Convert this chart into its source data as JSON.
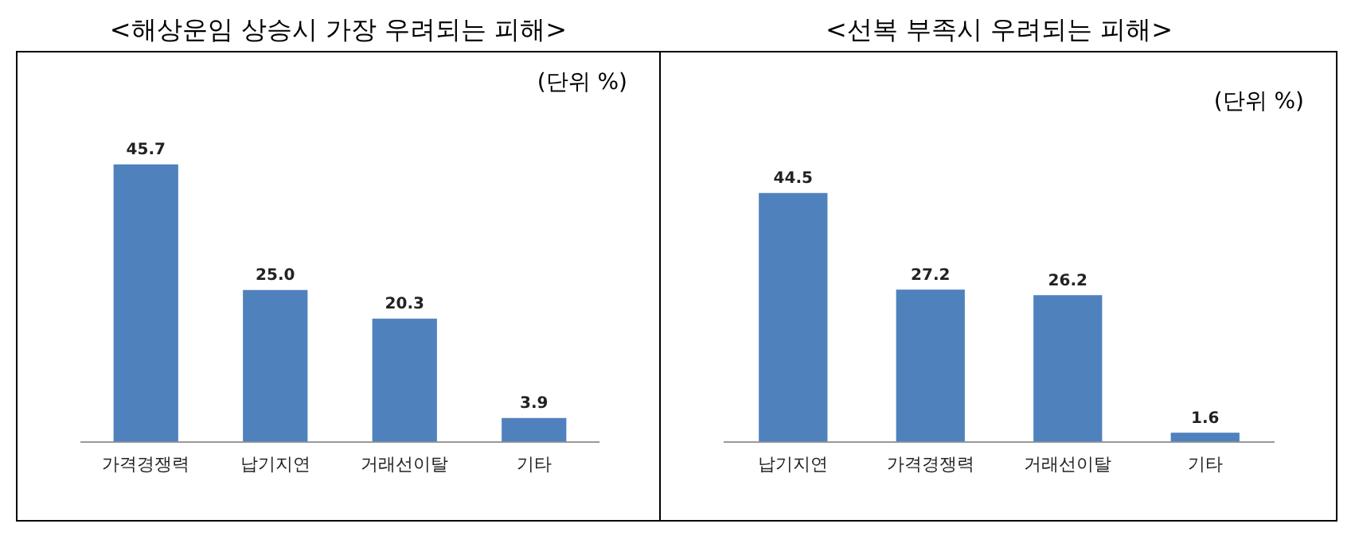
{
  "chart_data": [
    {
      "type": "bar",
      "title": "<해상운임 상승시 가장 우려되는 피해>",
      "annotations": [
        "(단위 %)"
      ],
      "categories": [
        "가격경쟁력",
        "납기지연",
        "거래선이탈",
        "기타"
      ],
      "values": [
        45.7,
        25.0,
        20.3,
        3.9
      ],
      "color": "#4f81bd",
      "data_labels": true,
      "value_labels": [
        "45.7",
        "25.0",
        "20.3",
        "3.9"
      ],
      "grid": false,
      "legend": false
    },
    {
      "type": "bar",
      "title": "<선복 부족시 우려되는 피해>",
      "annotations": [
        "(단위 %)"
      ],
      "categories": [
        "납기지연",
        "가격경쟁력",
        "거래선이탈",
        "기타"
      ],
      "values": [
        44.5,
        27.2,
        26.2,
        1.6
      ],
      "color": "#4f81bd",
      "data_labels": true,
      "value_labels": [
        "44.5",
        "27.2",
        "26.2",
        "1.6"
      ],
      "grid": false,
      "legend": false
    }
  ]
}
